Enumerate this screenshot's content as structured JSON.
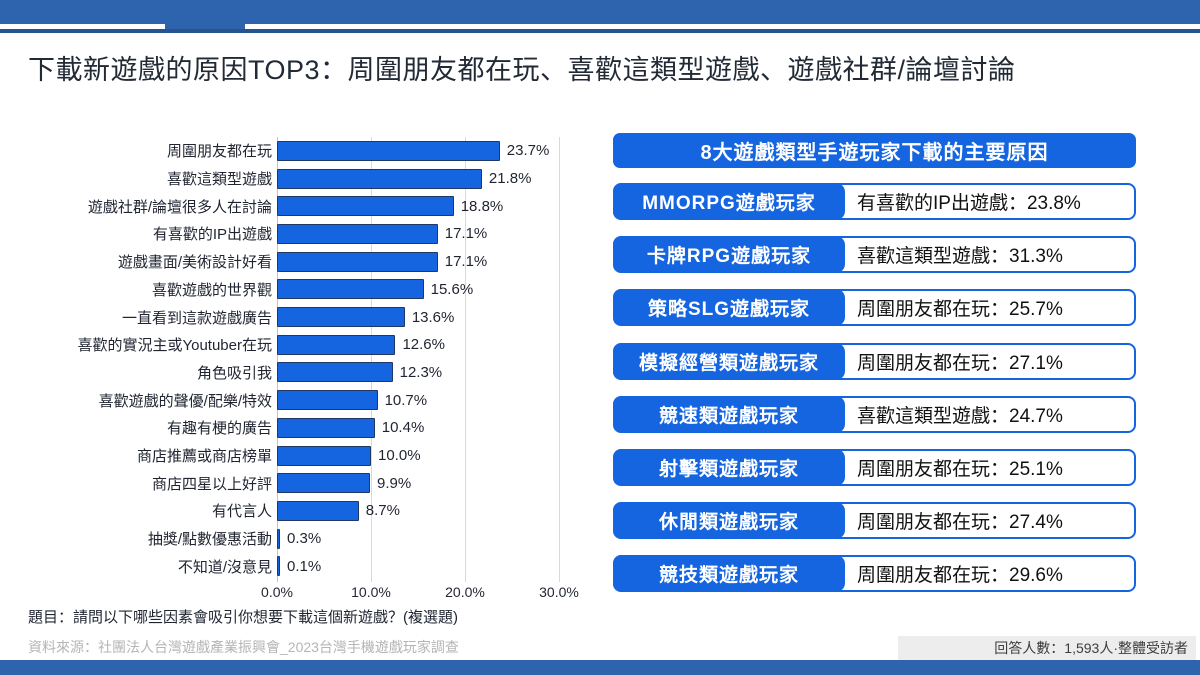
{
  "slide": {
    "title": "下載新遊戲的原因TOP3：周圍朋友都在玩、喜歡這類型遊戲、遊戲社群/論壇討論"
  },
  "chart_data": {
    "type": "bar",
    "orientation": "horizontal",
    "categories": [
      "周圍朋友都在玩",
      "喜歡這類型遊戲",
      "遊戲社群/論壇很多人在討論",
      "有喜歡的IP出遊戲",
      "遊戲畫面/美術設計好看",
      "喜歡遊戲的世界觀",
      "一直看到這款遊戲廣告",
      "喜歡的實況主或Youtuber在玩",
      "角色吸引我",
      "喜歡遊戲的聲優/配樂/特效",
      "有趣有梗的廣告",
      "商店推薦或商店榜單",
      "商店四星以上好評",
      "有代言人",
      "抽獎/點數優惠活動",
      "不知道/沒意見"
    ],
    "values": [
      23.7,
      21.8,
      18.8,
      17.1,
      17.1,
      15.6,
      13.6,
      12.6,
      12.3,
      10.7,
      10.4,
      10.0,
      9.9,
      8.7,
      0.3,
      0.1
    ],
    "value_suffix": "%",
    "xlim": [
      0,
      30
    ],
    "x_ticks": [
      {
        "value": 0,
        "label": "0.0%"
      },
      {
        "value": 10,
        "label": "10.0%"
      },
      {
        "value": 20,
        "label": "20.0%"
      },
      {
        "value": 30,
        "label": "30.0%"
      }
    ],
    "grid": true,
    "bar_color": "#1565e0",
    "bar_border_color": "#1f3864"
  },
  "right_panel": {
    "header": "8大遊戲類型手遊玩家下載的主要原因",
    "rows": [
      {
        "group": "MMORPG遊戲玩家",
        "reason_text": "有喜歡的IP出遊戲：23.8%"
      },
      {
        "group": "卡牌RPG遊戲玩家",
        "reason_text": "喜歡這類型遊戲：31.3%"
      },
      {
        "group": "策略SLG遊戲玩家",
        "reason_text": "周圍朋友都在玩：25.7%"
      },
      {
        "group": "模擬經營類遊戲玩家",
        "reason_text": "周圍朋友都在玩：27.1%"
      },
      {
        "group": "競速類遊戲玩家",
        "reason_text": "喜歡這類型遊戲：24.7%"
      },
      {
        "group": "射擊類遊戲玩家",
        "reason_text": "周圍朋友都在玩：25.1%"
      },
      {
        "group": "休閒類遊戲玩家",
        "reason_text": "周圍朋友都在玩：27.4%"
      },
      {
        "group": "競技類遊戲玩家",
        "reason_text": "周圍朋友都在玩：29.6%"
      }
    ]
  },
  "footer": {
    "question": "題目：請問以下哪些因素會吸引你想要下載這個新遊戲？(複選題)",
    "source": "資料來源：社團法人台灣遊戲產業振興會_2023台灣手機遊戲玩家調查",
    "respondents": "回答人數：1,593人·整體受訪者"
  },
  "colors": {
    "accent_blue": "#1565e0",
    "bar_border_navy": "#1f3864",
    "banner_blue": "#2e64ad",
    "banner_line_blue": "#27548f",
    "gridline_gray": "#d9d9d9",
    "source_gray": "#b5b5b5",
    "respondent_box_gray": "#ededed"
  }
}
